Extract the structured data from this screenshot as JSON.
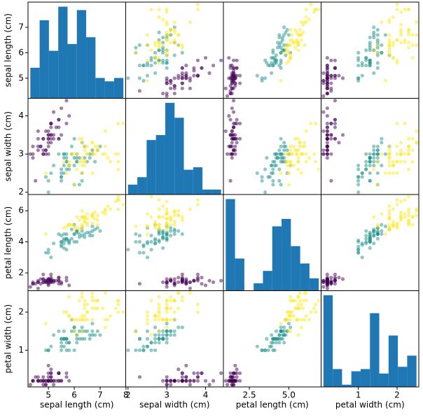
{
  "chart_data": {
    "type": "scatter_matrix",
    "point_alpha": 0.5,
    "hist_color": "#1f77b4",
    "variables": [
      {
        "label": "sepal length (cm)",
        "lim": [
          4.21,
          7.99
        ],
        "xticks": [
          5,
          6,
          7,
          8
        ],
        "yticks": [
          5,
          6,
          7
        ],
        "bins": [
          4.3,
          4.66,
          5.02,
          5.38,
          5.74,
          6.1,
          6.46,
          6.82,
          7.18,
          7.54,
          7.9
        ],
        "counts": [
          9,
          23,
          14,
          27,
          16,
          26,
          18,
          6,
          5,
          6
        ],
        "count_lim": [
          0,
          28.35
        ]
      },
      {
        "label": "sepal width (cm)",
        "lim": [
          1.94,
          4.46
        ],
        "xticks": [
          2,
          3,
          4
        ],
        "yticks": [
          2,
          3,
          4
        ],
        "bins": [
          2.0,
          2.24,
          2.48,
          2.72,
          2.96,
          3.2,
          3.44,
          3.68,
          3.92,
          4.16,
          4.4
        ],
        "counts": [
          4,
          7,
          22,
          24,
          37,
          31,
          10,
          11,
          2,
          2
        ],
        "count_lim": [
          0,
          38.85
        ]
      },
      {
        "label": "petal length (cm)",
        "lim": [
          0.8525,
          7.0475
        ],
        "xticks": [
          2.5,
          {
            "value": 5,
            "label": "5.0"
          }
        ],
        "yticks": [
          2,
          4,
          6
        ],
        "bins": [
          1.0,
          1.59,
          2.18,
          2.77,
          3.36,
          3.95,
          4.54,
          5.13,
          5.72,
          6.31,
          6.9
        ],
        "counts": [
          37,
          13,
          0,
          3,
          8,
          26,
          29,
          18,
          11,
          5
        ],
        "count_lim": [
          0,
          38.85
        ]
      },
      {
        "label": "petal width (cm)",
        "lim": [
          0.04,
          2.56
        ],
        "xticks": [
          1,
          2
        ],
        "yticks": [
          1,
          2
        ],
        "bins": [
          0.1,
          0.34,
          0.58,
          0.82,
          1.06,
          1.3,
          1.54,
          1.78,
          2.02,
          2.26,
          2.5
        ],
        "counts": [
          41,
          8,
          1,
          7,
          8,
          33,
          6,
          23,
          9,
          14
        ],
        "count_lim": [
          0,
          43.05
        ]
      }
    ],
    "series": [
      {
        "color": "#440154",
        "values": [
          [
            5.1,
            3.5,
            1.4,
            0.2
          ],
          [
            4.9,
            3.0,
            1.4,
            0.2
          ],
          [
            4.7,
            3.2,
            1.3,
            0.2
          ],
          [
            4.6,
            3.1,
            1.5,
            0.2
          ],
          [
            5.0,
            3.6,
            1.4,
            0.2
          ],
          [
            5.4,
            3.9,
            1.7,
            0.4
          ],
          [
            4.6,
            3.4,
            1.4,
            0.3
          ],
          [
            5.0,
            3.4,
            1.5,
            0.2
          ],
          [
            4.4,
            2.9,
            1.4,
            0.2
          ],
          [
            4.9,
            3.1,
            1.5,
            0.1
          ],
          [
            5.4,
            3.7,
            1.5,
            0.2
          ],
          [
            4.8,
            3.4,
            1.6,
            0.2
          ],
          [
            4.8,
            3.0,
            1.4,
            0.1
          ],
          [
            4.3,
            3.0,
            1.1,
            0.1
          ],
          [
            5.8,
            4.0,
            1.2,
            0.2
          ],
          [
            5.7,
            4.4,
            1.5,
            0.4
          ],
          [
            5.4,
            3.9,
            1.3,
            0.4
          ],
          [
            5.1,
            3.5,
            1.4,
            0.3
          ],
          [
            5.7,
            3.8,
            1.7,
            0.3
          ],
          [
            5.1,
            3.8,
            1.5,
            0.3
          ],
          [
            5.4,
            3.4,
            1.7,
            0.2
          ],
          [
            5.1,
            3.7,
            1.5,
            0.4
          ],
          [
            4.6,
            3.6,
            1.0,
            0.2
          ],
          [
            5.1,
            3.3,
            1.7,
            0.5
          ],
          [
            4.8,
            3.4,
            1.9,
            0.2
          ],
          [
            5.0,
            3.0,
            1.6,
            0.2
          ],
          [
            5.0,
            3.4,
            1.6,
            0.4
          ],
          [
            5.2,
            3.5,
            1.5,
            0.2
          ],
          [
            5.2,
            3.4,
            1.4,
            0.2
          ],
          [
            4.7,
            3.2,
            1.6,
            0.2
          ],
          [
            4.8,
            3.1,
            1.6,
            0.2
          ],
          [
            5.4,
            3.4,
            1.5,
            0.4
          ],
          [
            5.2,
            4.1,
            1.5,
            0.1
          ],
          [
            5.5,
            4.2,
            1.4,
            0.2
          ],
          [
            4.9,
            3.1,
            1.5,
            0.2
          ],
          [
            5.0,
            3.2,
            1.2,
            0.2
          ],
          [
            5.5,
            3.5,
            1.3,
            0.2
          ],
          [
            4.9,
            3.6,
            1.4,
            0.1
          ],
          [
            4.4,
            3.0,
            1.3,
            0.2
          ],
          [
            5.1,
            3.4,
            1.5,
            0.2
          ],
          [
            5.0,
            3.5,
            1.3,
            0.3
          ],
          [
            4.5,
            2.3,
            1.3,
            0.3
          ],
          [
            4.4,
            3.2,
            1.3,
            0.2
          ],
          [
            5.0,
            3.5,
            1.6,
            0.6
          ],
          [
            5.1,
            3.8,
            1.9,
            0.4
          ],
          [
            4.8,
            3.0,
            1.4,
            0.3
          ],
          [
            5.1,
            3.8,
            1.6,
            0.2
          ],
          [
            4.6,
            3.2,
            1.4,
            0.2
          ],
          [
            5.3,
            3.7,
            1.5,
            0.2
          ],
          [
            5.0,
            3.3,
            1.4,
            0.2
          ]
        ]
      },
      {
        "color": "#21918c",
        "values": [
          [
            7.0,
            3.2,
            4.7,
            1.4
          ],
          [
            6.4,
            3.2,
            4.5,
            1.5
          ],
          [
            6.9,
            3.1,
            4.9,
            1.5
          ],
          [
            5.5,
            2.3,
            4.0,
            1.3
          ],
          [
            6.5,
            2.8,
            4.6,
            1.5
          ],
          [
            5.7,
            2.8,
            4.5,
            1.3
          ],
          [
            6.3,
            3.3,
            4.7,
            1.6
          ],
          [
            4.9,
            2.4,
            3.3,
            1.0
          ],
          [
            6.6,
            2.9,
            4.6,
            1.3
          ],
          [
            5.2,
            2.7,
            3.9,
            1.4
          ],
          [
            5.0,
            2.0,
            3.5,
            1.0
          ],
          [
            5.9,
            3.0,
            4.2,
            1.5
          ],
          [
            6.0,
            2.2,
            4.0,
            1.0
          ],
          [
            6.1,
            2.9,
            4.7,
            1.4
          ],
          [
            5.6,
            2.9,
            3.6,
            1.3
          ],
          [
            6.7,
            3.1,
            4.4,
            1.4
          ],
          [
            5.6,
            3.0,
            4.5,
            1.5
          ],
          [
            5.8,
            2.7,
            4.1,
            1.0
          ],
          [
            6.2,
            2.2,
            4.5,
            1.5
          ],
          [
            5.6,
            2.5,
            3.9,
            1.1
          ],
          [
            5.9,
            3.2,
            4.8,
            1.8
          ],
          [
            6.1,
            2.8,
            4.0,
            1.3
          ],
          [
            6.3,
            2.5,
            4.9,
            1.5
          ],
          [
            6.1,
            2.8,
            4.7,
            1.2
          ],
          [
            6.4,
            2.9,
            4.3,
            1.3
          ],
          [
            6.6,
            3.0,
            4.4,
            1.4
          ],
          [
            6.8,
            2.8,
            4.8,
            1.4
          ],
          [
            6.7,
            3.0,
            5.0,
            1.7
          ],
          [
            6.0,
            2.9,
            4.5,
            1.5
          ],
          [
            5.7,
            2.6,
            3.5,
            1.0
          ],
          [
            5.5,
            2.4,
            3.8,
            1.1
          ],
          [
            5.5,
            2.4,
            3.7,
            1.0
          ],
          [
            5.8,
            2.7,
            3.9,
            1.2
          ],
          [
            6.0,
            2.7,
            5.1,
            1.6
          ],
          [
            5.4,
            3.0,
            4.5,
            1.5
          ],
          [
            6.0,
            3.4,
            4.5,
            1.6
          ],
          [
            6.7,
            3.1,
            4.7,
            1.5
          ],
          [
            6.3,
            2.3,
            4.4,
            1.3
          ],
          [
            5.6,
            3.0,
            4.1,
            1.3
          ],
          [
            5.5,
            2.5,
            4.0,
            1.3
          ],
          [
            5.5,
            2.6,
            4.4,
            1.2
          ],
          [
            6.1,
            3.0,
            4.6,
            1.4
          ],
          [
            5.8,
            2.6,
            4.0,
            1.2
          ],
          [
            5.0,
            2.3,
            3.3,
            1.0
          ],
          [
            5.6,
            2.7,
            4.2,
            1.3
          ],
          [
            5.7,
            3.0,
            4.2,
            1.2
          ],
          [
            5.7,
            2.9,
            4.2,
            1.3
          ],
          [
            6.2,
            2.9,
            4.3,
            1.3
          ],
          [
            5.1,
            2.5,
            3.0,
            1.1
          ],
          [
            5.7,
            2.8,
            4.1,
            1.3
          ]
        ]
      },
      {
        "color": "#fde725",
        "values": [
          [
            6.3,
            3.3,
            6.0,
            2.5
          ],
          [
            5.8,
            2.7,
            5.1,
            1.9
          ],
          [
            7.1,
            3.0,
            5.9,
            2.1
          ],
          [
            6.3,
            2.9,
            5.6,
            1.8
          ],
          [
            6.5,
            3.0,
            5.8,
            2.2
          ],
          [
            7.6,
            3.0,
            6.6,
            2.1
          ],
          [
            4.9,
            2.5,
            4.5,
            1.7
          ],
          [
            7.3,
            2.9,
            6.3,
            1.8
          ],
          [
            6.7,
            2.5,
            5.8,
            1.8
          ],
          [
            7.2,
            3.6,
            6.1,
            2.5
          ],
          [
            6.5,
            3.2,
            5.1,
            2.0
          ],
          [
            6.4,
            2.7,
            5.3,
            1.9
          ],
          [
            6.8,
            3.0,
            5.5,
            2.1
          ],
          [
            5.7,
            2.5,
            5.0,
            2.0
          ],
          [
            5.8,
            2.8,
            5.1,
            2.4
          ],
          [
            6.4,
            3.2,
            5.3,
            2.3
          ],
          [
            6.5,
            3.0,
            5.5,
            1.8
          ],
          [
            7.7,
            3.8,
            6.7,
            2.2
          ],
          [
            7.7,
            2.6,
            6.9,
            2.3
          ],
          [
            6.0,
            2.2,
            5.0,
            1.5
          ],
          [
            6.9,
            3.2,
            5.7,
            2.3
          ],
          [
            5.6,
            2.8,
            4.9,
            2.0
          ],
          [
            7.7,
            2.8,
            6.7,
            2.0
          ],
          [
            6.3,
            2.7,
            4.9,
            1.8
          ],
          [
            6.7,
            3.3,
            5.7,
            2.1
          ],
          [
            7.2,
            3.2,
            6.0,
            1.8
          ],
          [
            6.2,
            2.8,
            4.8,
            1.8
          ],
          [
            6.1,
            3.0,
            4.9,
            1.8
          ],
          [
            6.4,
            2.8,
            5.6,
            2.1
          ],
          [
            7.2,
            3.0,
            5.8,
            1.6
          ],
          [
            7.4,
            2.8,
            6.1,
            1.9
          ],
          [
            7.9,
            3.8,
            6.4,
            2.0
          ],
          [
            6.4,
            2.8,
            5.6,
            2.2
          ],
          [
            6.3,
            2.8,
            5.1,
            1.5
          ],
          [
            6.1,
            2.6,
            5.6,
            1.4
          ],
          [
            7.7,
            3.0,
            6.1,
            2.3
          ],
          [
            6.3,
            3.4,
            5.6,
            2.4
          ],
          [
            6.4,
            3.1,
            5.5,
            1.8
          ],
          [
            6.0,
            3.0,
            4.8,
            1.8
          ],
          [
            6.9,
            3.1,
            5.4,
            2.1
          ],
          [
            6.7,
            3.1,
            5.6,
            2.4
          ],
          [
            6.9,
            3.1,
            5.1,
            2.3
          ],
          [
            5.8,
            2.7,
            5.1,
            1.9
          ],
          [
            6.8,
            3.2,
            5.9,
            2.3
          ],
          [
            6.7,
            3.3,
            5.7,
            2.5
          ],
          [
            6.7,
            3.0,
            5.2,
            2.3
          ],
          [
            6.3,
            2.5,
            5.0,
            1.9
          ],
          [
            6.5,
            3.0,
            5.2,
            2.0
          ],
          [
            6.2,
            3.4,
            5.4,
            2.3
          ],
          [
            5.9,
            3.0,
            5.1,
            1.8
          ]
        ]
      }
    ]
  }
}
